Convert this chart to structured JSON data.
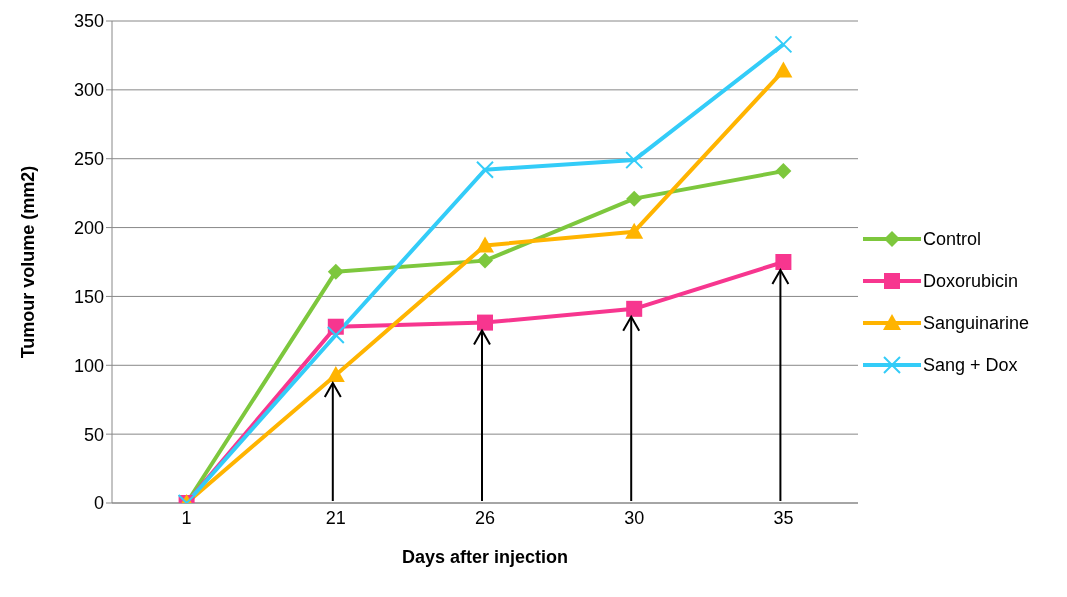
{
  "chart_data": {
    "type": "line",
    "xlabel": "Days after injection",
    "ylabel": "Tumour volume (mm2)",
    "categories": [
      "1",
      "21",
      "26",
      "30",
      "35"
    ],
    "ylim": [
      0,
      350
    ],
    "yticks": [
      0,
      50,
      100,
      150,
      200,
      250,
      300,
      350
    ],
    "grid": "y",
    "legend": "right",
    "line_style": "solid",
    "series": [
      {
        "name": "Control",
        "color": "#7dc73d",
        "marker": "diamond",
        "values": [
          0,
          168,
          176,
          221,
          241
        ]
      },
      {
        "name": "Doxorubicin",
        "color": "#f7368f",
        "marker": "square",
        "values": [
          0,
          128,
          131,
          141,
          175
        ]
      },
      {
        "name": "Sanguinarine",
        "color": "#ffb400",
        "marker": "triangle",
        "values": [
          0,
          93,
          187,
          197,
          314
        ]
      },
      {
        "name": "Sang + Dox",
        "color": "#33ccf8",
        "marker": "cross",
        "values": [
          0,
          122,
          242,
          249,
          333
        ]
      }
    ]
  }
}
